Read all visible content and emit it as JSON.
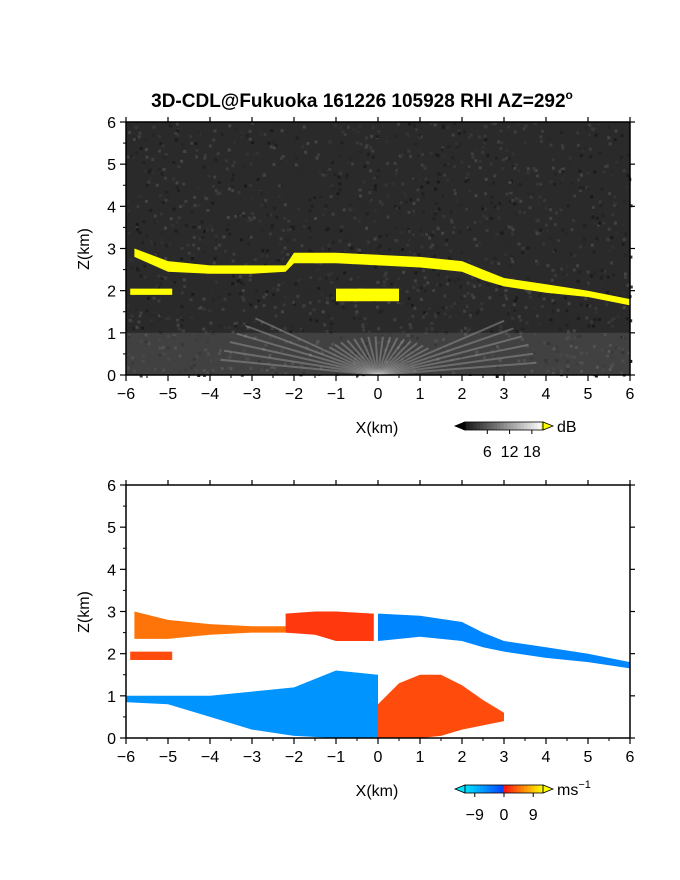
{
  "title": "3D-CDL@Fukuoka 161226 105928 RHI AZ=292",
  "title_degree": "o",
  "chart_data": [
    {
      "type": "heatmap",
      "panel": "top",
      "quantity": "backscatter intensity",
      "xlabel": "X(km)",
      "ylabel": "Z(km)",
      "xlim": [
        -6,
        6
      ],
      "ylim": [
        0,
        6
      ],
      "xticks": [
        -6,
        -5,
        -4,
        -3,
        -2,
        -1,
        0,
        1,
        2,
        3,
        4,
        5,
        6
      ],
      "yticks": [
        0,
        1,
        2,
        3,
        4,
        5,
        6
      ],
      "background_color": "#2a2a2a",
      "colorbar": {
        "unit": "dB",
        "ticks": [
          6,
          12,
          18
        ],
        "range": [
          0,
          21
        ],
        "low_color": "#000000",
        "high_color": "#ffff00"
      },
      "layers": [
        {
          "name": "upper",
          "color": "#ffff00",
          "x": [
            -5.8,
            -5,
            -4,
            -3,
            -2.2,
            -2,
            -1,
            0,
            1,
            2,
            2.5,
            3,
            4,
            5,
            6
          ],
          "z_top": [
            3.0,
            2.7,
            2.6,
            2.6,
            2.6,
            2.9,
            2.9,
            2.85,
            2.8,
            2.7,
            2.5,
            2.3,
            2.15,
            2.0,
            1.8
          ],
          "z_bottom": [
            2.8,
            2.45,
            2.4,
            2.4,
            2.45,
            2.65,
            2.65,
            2.6,
            2.55,
            2.45,
            2.25,
            2.1,
            1.95,
            1.85,
            1.65
          ]
        },
        {
          "name": "left-lower",
          "color": "#ffff00",
          "x": [
            -5.9,
            -4.9
          ],
          "z_top": [
            2.05,
            2.05
          ],
          "z_bottom": [
            1.9,
            1.9
          ]
        },
        {
          "name": "center-patch",
          "color": "#ffff00",
          "x": [
            -1,
            0.5
          ],
          "z_top": [
            2.05,
            2.05
          ],
          "z_bottom": [
            1.75,
            1.75
          ]
        }
      ]
    },
    {
      "type": "heatmap",
      "panel": "bottom",
      "quantity": "radial velocity",
      "xlabel": "X(km)",
      "ylabel": "Z(km)",
      "xlim": [
        -6,
        6
      ],
      "ylim": [
        0,
        6
      ],
      "xticks": [
        -6,
        -5,
        -4,
        -3,
        -2,
        -1,
        0,
        1,
        2,
        3,
        4,
        5,
        6
      ],
      "yticks": [
        0,
        1,
        2,
        3,
        4,
        5,
        6
      ],
      "background_color": "#ffffff",
      "colorbar": {
        "unit": "ms",
        "unit_exponent": "−1",
        "ticks": [
          "−9",
          "0",
          "9"
        ],
        "range": [
          -12,
          12
        ],
        "low_color": "#00e5ff",
        "mid_color": "#ff1010",
        "high_color": "#ffff00"
      },
      "layers": [
        {
          "name": "upper-left",
          "velocity": 5,
          "x": [
            -5.8,
            -5,
            -4,
            -3,
            -2
          ],
          "z_top": [
            3.0,
            2.8,
            2.7,
            2.65,
            2.65
          ],
          "z_bottom": [
            2.35,
            2.35,
            2.45,
            2.5,
            2.5
          ]
        },
        {
          "name": "upper-mid",
          "velocity": 2,
          "x": [
            -2.2,
            -1.5,
            -1,
            -0.1
          ],
          "z_top": [
            2.95,
            3.0,
            3.0,
            2.95
          ],
          "z_bottom": [
            2.5,
            2.45,
            2.3,
            2.3
          ]
        },
        {
          "name": "upper-right",
          "velocity": -5,
          "x": [
            0,
            1,
            2,
            2.5,
            3,
            4,
            5,
            6
          ],
          "z_top": [
            2.95,
            2.9,
            2.75,
            2.5,
            2.3,
            2.15,
            2.0,
            1.8
          ],
          "z_bottom": [
            2.3,
            2.4,
            2.3,
            2.15,
            2.05,
            1.9,
            1.8,
            1.65
          ]
        },
        {
          "name": "left-lower",
          "velocity": 3,
          "x": [
            -5.9,
            -4.9
          ],
          "z_top": [
            2.05,
            2.05
          ],
          "z_bottom": [
            1.85,
            1.85
          ]
        },
        {
          "name": "bl-negative",
          "velocity": -6,
          "x": [
            -6,
            -5,
            -4,
            -3,
            -2,
            -1,
            0
          ],
          "z_top": [
            1.0,
            1.0,
            1.0,
            1.1,
            1.2,
            1.6,
            1.5
          ],
          "z_bottom": [
            0.85,
            0.8,
            0.5,
            0.2,
            0.05,
            0.0,
            0.0
          ]
        },
        {
          "name": "br-positive",
          "velocity": 3,
          "x": [
            0,
            0.5,
            1,
            1.5,
            2,
            2.5,
            3
          ],
          "z_top": [
            0.8,
            1.3,
            1.5,
            1.5,
            1.25,
            0.9,
            0.6
          ],
          "z_bottom": [
            0.0,
            0.0,
            0.0,
            0.05,
            0.2,
            0.3,
            0.4
          ]
        }
      ]
    }
  ]
}
